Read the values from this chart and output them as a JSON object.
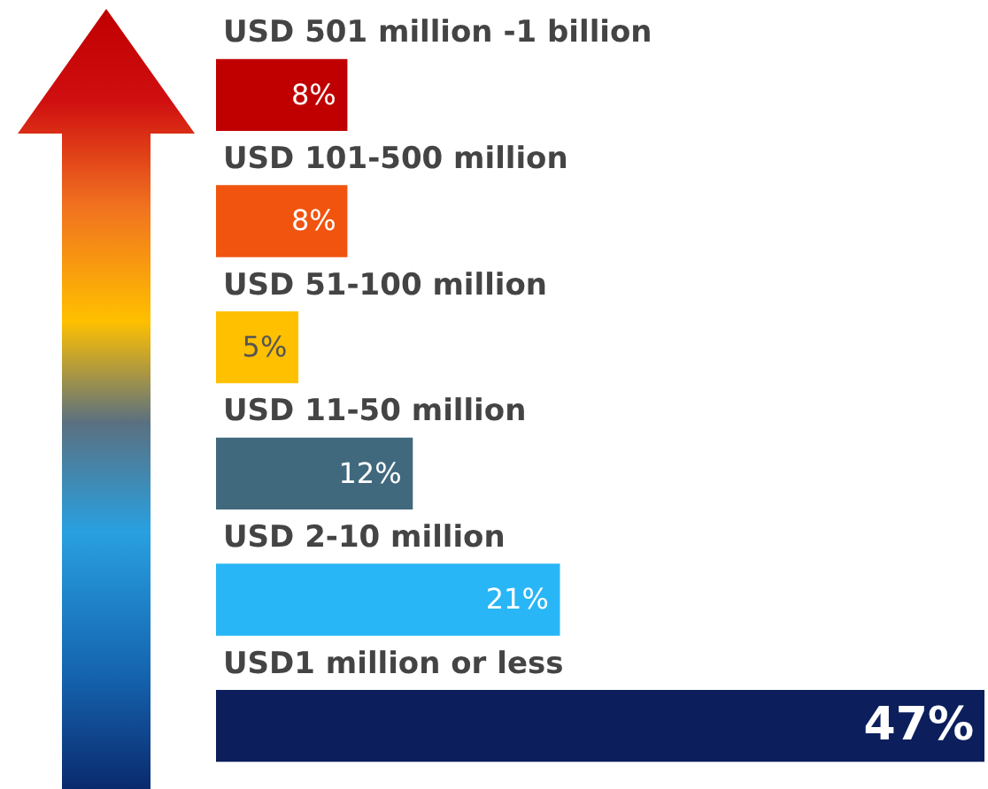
{
  "chart_data": {
    "type": "bar",
    "orientation": "horizontal",
    "categories": [
      "USD 501 million -1 billion",
      "USD 101-500 million",
      "USD 51-100 million",
      "USD 11-50 million",
      "USD 2-10 million",
      "USD1 million or less"
    ],
    "values": [
      8,
      8,
      5,
      12,
      21,
      47
    ],
    "colors": [
      "#c00000",
      "#f0540f",
      "#ffc000",
      "#41697e",
      "#29b6f6",
      "#0c1f5c"
    ],
    "value_labels": [
      "8%",
      "8%",
      "5%",
      "12%",
      "21%",
      "47%"
    ]
  }
}
